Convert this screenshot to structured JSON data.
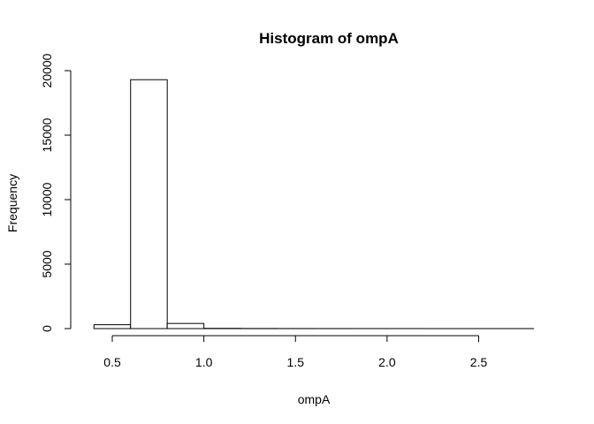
{
  "chart_data": {
    "type": "bar",
    "title": "Histogram of ompA",
    "xlabel": "ompA",
    "ylabel": "Frequency",
    "xlim": [
      0.36,
      2.84
    ],
    "ylim": [
      0,
      20000
    ],
    "x_ticks": [
      0.5,
      1.0,
      1.5,
      2.0,
      2.5
    ],
    "x_tick_labels": [
      "0.5",
      "1.0",
      "1.5",
      "2.0",
      "2.5"
    ],
    "y_ticks": [
      0,
      5000,
      10000,
      15000,
      20000
    ],
    "y_tick_labels": [
      "0",
      "5000",
      "10000",
      "15000",
      "20000"
    ],
    "bins": [
      {
        "x0": 0.4,
        "x1": 0.6,
        "value": 300
      },
      {
        "x0": 0.6,
        "x1": 0.8,
        "value": 19300
      },
      {
        "x0": 0.8,
        "x1": 1.0,
        "value": 400
      },
      {
        "x0": 1.0,
        "x1": 1.2,
        "value": 20
      },
      {
        "x0": 1.2,
        "x1": 1.4,
        "value": 10
      },
      {
        "x0": 1.4,
        "x1": 1.6,
        "value": 5
      },
      {
        "x0": 1.6,
        "x1": 1.8,
        "value": 3
      },
      {
        "x0": 1.8,
        "x1": 2.0,
        "value": 2
      },
      {
        "x0": 2.0,
        "x1": 2.2,
        "value": 2
      },
      {
        "x0": 2.2,
        "x1": 2.4,
        "value": 1
      },
      {
        "x0": 2.4,
        "x1": 2.6,
        "value": 1
      },
      {
        "x0": 2.6,
        "x1": 2.8,
        "value": 1
      }
    ],
    "grid": false,
    "legend": "none"
  }
}
